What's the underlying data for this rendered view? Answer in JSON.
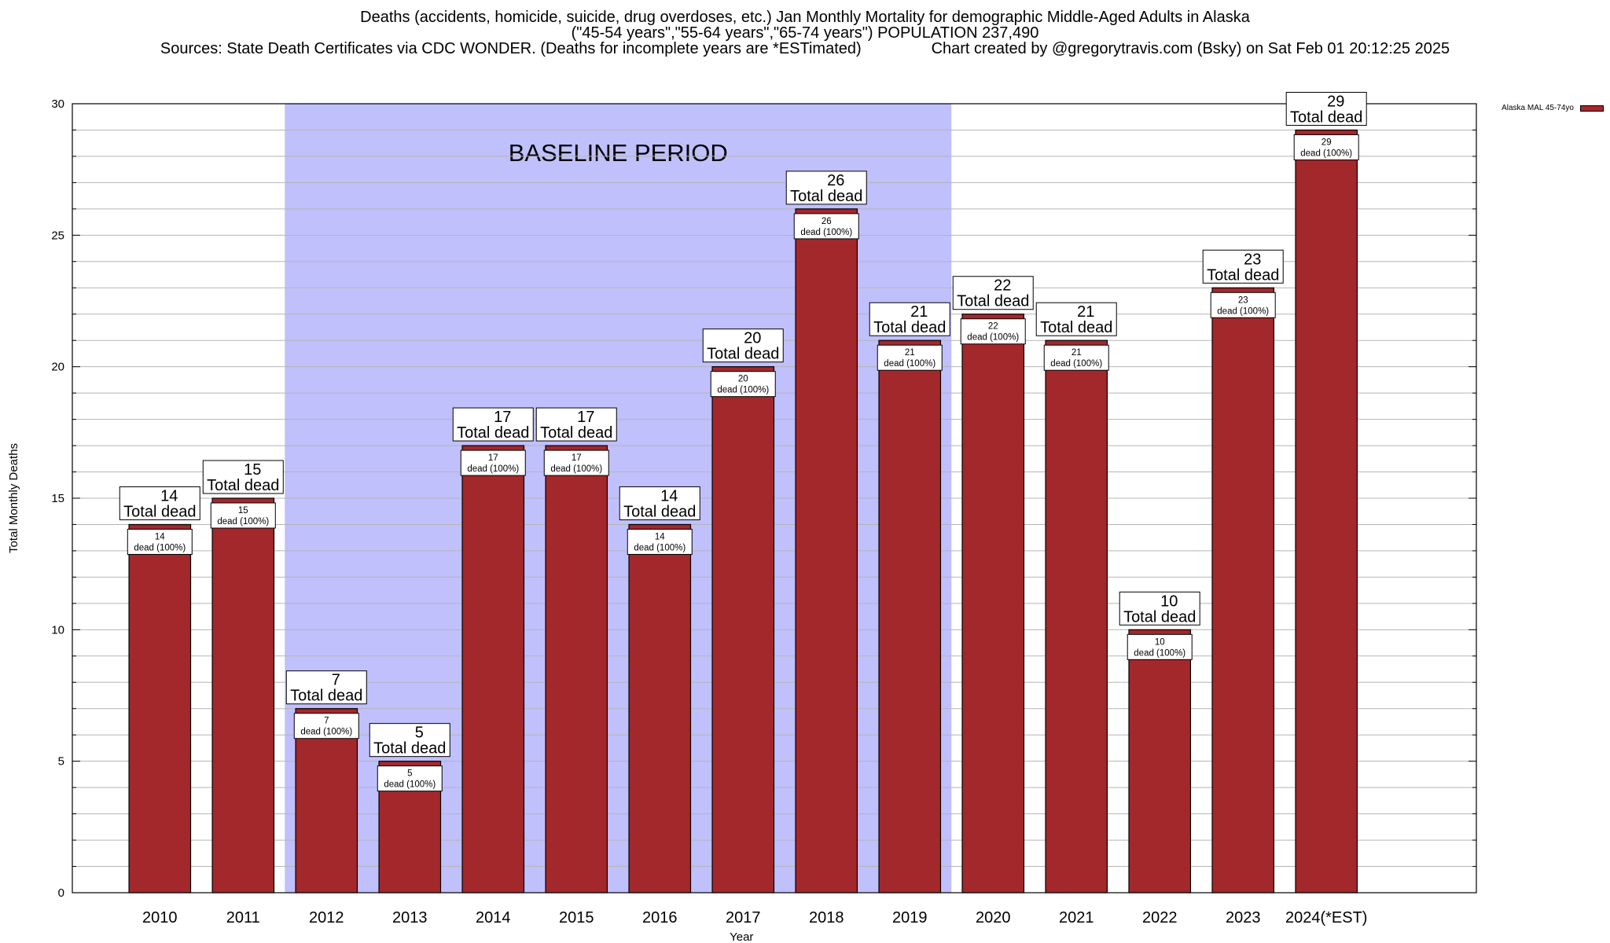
{
  "chart_data": {
    "type": "bar",
    "title_lines": [
      "Deaths (accidents, homicide, suicide, drug overdoses, etc.) Jan Monthly Mortality for demographic Middle-Aged Adults in Alaska",
      "(\"45-54 years\",\"55-64 years\",\"65-74 years\") POPULATION 237,490",
      "Sources: State Death Certificates via CDC WONDER. (Deaths for incomplete years are *ESTimated)                Chart created by @gregorytravis.com (Bsky) on Sat Feb 01 20:12:25 2025"
    ],
    "xlabel": "Year",
    "ylabel": "Total Monthly Deaths",
    "ylim": [
      0,
      30
    ],
    "yticks": [
      0,
      5,
      10,
      15,
      20,
      25,
      30
    ],
    "categories": [
      "2010",
      "2011",
      "2012",
      "2013",
      "2014",
      "2015",
      "2016",
      "2017",
      "2018",
      "2019",
      "2020",
      "2021",
      "2022",
      "2023",
      "2024(*EST)"
    ],
    "series": [
      {
        "name": "Alaska MAL 45-74yo",
        "color": "#a3282b",
        "values": [
          14,
          15,
          7,
          5,
          17,
          17,
          14,
          20,
          26,
          21,
          22,
          21,
          10,
          23,
          29
        ]
      }
    ],
    "total_label_suffix": "Total dead",
    "inner_label_suffix": "dead (100%)",
    "baseline": {
      "label": "BASELINE PERIOD",
      "start": "2012",
      "end": "2019",
      "color": "#c0c0fc"
    },
    "legend_position": "top-right",
    "grid": true
  }
}
